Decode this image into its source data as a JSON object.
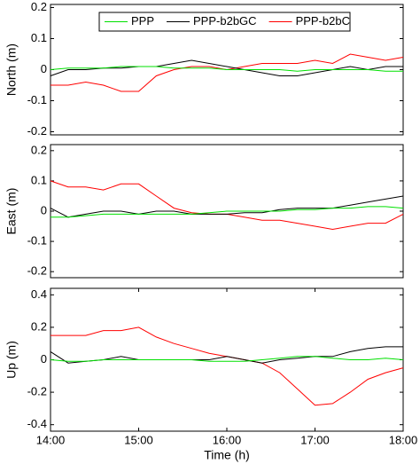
{
  "chart_data": [
    {
      "type": "line",
      "y_label": "North (m)",
      "x": [
        14,
        14.2,
        14.4,
        14.6,
        14.8,
        15,
        15.2,
        15.4,
        15.6,
        15.8,
        16,
        16.2,
        16.4,
        16.6,
        16.8,
        17,
        17.2,
        17.4,
        17.6,
        17.8,
        18
      ],
      "xlim": [
        14,
        18
      ],
      "ylim": [
        -0.21,
        0.21
      ],
      "yticks": [
        -0.2,
        -0.1,
        0,
        0.1,
        0.2
      ],
      "legend": "top",
      "series": [
        {
          "name": "PPP",
          "color": "#00e000",
          "values": [
            0,
            0.005,
            0.005,
            0.005,
            0.01,
            0.01,
            0.01,
            0.005,
            0.005,
            0.005,
            0,
            0,
            0,
            0,
            -0.005,
            0,
            0,
            0,
            0,
            -0.005,
            -0.005
          ]
        },
        {
          "name": "PPP-b2bGC",
          "color": "#000000",
          "values": [
            -0.02,
            0,
            0,
            0.005,
            0.005,
            0.01,
            0.01,
            0.02,
            0.03,
            0.02,
            0.01,
            0,
            -0.01,
            -0.02,
            -0.02,
            -0.01,
            0,
            0.01,
            0,
            0.01,
            0.01
          ]
        },
        {
          "name": "PPP-b2bC",
          "color": "#ff0000",
          "values": [
            -0.05,
            -0.05,
            -0.04,
            -0.05,
            -0.07,
            -0.07,
            -0.02,
            0,
            0.01,
            0.01,
            0,
            0.01,
            0.02,
            0.02,
            0.02,
            0.03,
            0.02,
            0.05,
            0.04,
            0.03,
            0.04
          ]
        }
      ]
    },
    {
      "type": "line",
      "y_label": "East (m)",
      "x": [
        14,
        14.2,
        14.4,
        14.6,
        14.8,
        15,
        15.2,
        15.4,
        15.6,
        15.8,
        16,
        16.2,
        16.4,
        16.6,
        16.8,
        17,
        17.2,
        17.4,
        17.6,
        17.8,
        18
      ],
      "xlim": [
        14,
        18
      ],
      "ylim": [
        -0.22,
        0.22
      ],
      "yticks": [
        -0.2,
        -0.1,
        0,
        0.1,
        0.2
      ],
      "series": [
        {
          "color": "#00e000",
          "values": [
            -0.02,
            -0.02,
            -0.015,
            -0.01,
            -0.01,
            -0.01,
            -0.01,
            -0.01,
            -0.01,
            -0.005,
            0,
            0,
            0,
            0,
            0.005,
            0.005,
            0.01,
            0.01,
            0.015,
            0.015,
            0.01
          ]
        },
        {
          "color": "#000000",
          "values": [
            0.01,
            -0.02,
            -0.01,
            0,
            0,
            -0.01,
            0,
            0,
            -0.01,
            -0.01,
            -0.01,
            -0.005,
            -0.005,
            0.005,
            0.01,
            0.01,
            0.01,
            0.02,
            0.03,
            0.04,
            0.05
          ]
        },
        {
          "color": "#ff0000",
          "values": [
            0.1,
            0.08,
            0.08,
            0.07,
            0.09,
            0.09,
            0.05,
            0.01,
            -0.005,
            -0.01,
            -0.01,
            -0.02,
            -0.03,
            -0.03,
            -0.04,
            -0.05,
            -0.06,
            -0.05,
            -0.04,
            -0.04,
            -0.01
          ]
        }
      ]
    },
    {
      "type": "line",
      "y_label": "Up (m)",
      "x_label": "Time (h)",
      "x": [
        14,
        14.2,
        14.4,
        14.6,
        14.8,
        15,
        15.2,
        15.4,
        15.6,
        15.8,
        16,
        16.2,
        16.4,
        16.6,
        16.8,
        17,
        17.2,
        17.4,
        17.6,
        17.8,
        18
      ],
      "xlim": [
        14,
        18
      ],
      "xticks": [
        {
          "value": 14,
          "label": "14:00"
        },
        {
          "value": 15,
          "label": "15:00"
        },
        {
          "value": 16,
          "label": "16:00"
        },
        {
          "value": 17,
          "label": "17:00"
        },
        {
          "value": 18,
          "label": "18:00"
        }
      ],
      "ylim": [
        -0.44,
        0.44
      ],
      "yticks": [
        -0.4,
        -0.2,
        0,
        0.2,
        0.4
      ],
      "series": [
        {
          "color": "#00e000",
          "values": [
            0,
            -0.01,
            -0.01,
            0,
            0,
            0,
            0,
            0,
            0,
            -0.01,
            -0.01,
            -0.01,
            0,
            0.01,
            0.02,
            0.02,
            0.01,
            0,
            0,
            0.01,
            0
          ]
        },
        {
          "color": "#000000",
          "values": [
            0.05,
            -0.02,
            -0.01,
            0,
            0.02,
            0,
            0,
            0,
            0,
            0,
            0.02,
            0,
            -0.02,
            0,
            0.01,
            0.02,
            0.02,
            0.05,
            0.07,
            0.08,
            0.08
          ]
        },
        {
          "color": "#ff0000",
          "values": [
            0.15,
            0.15,
            0.15,
            0.18,
            0.18,
            0.2,
            0.14,
            0.1,
            0.07,
            0.04,
            0.02,
            0,
            -0.02,
            -0.08,
            -0.18,
            -0.28,
            -0.27,
            -0.2,
            -0.12,
            -0.08,
            -0.05
          ]
        }
      ]
    }
  ]
}
